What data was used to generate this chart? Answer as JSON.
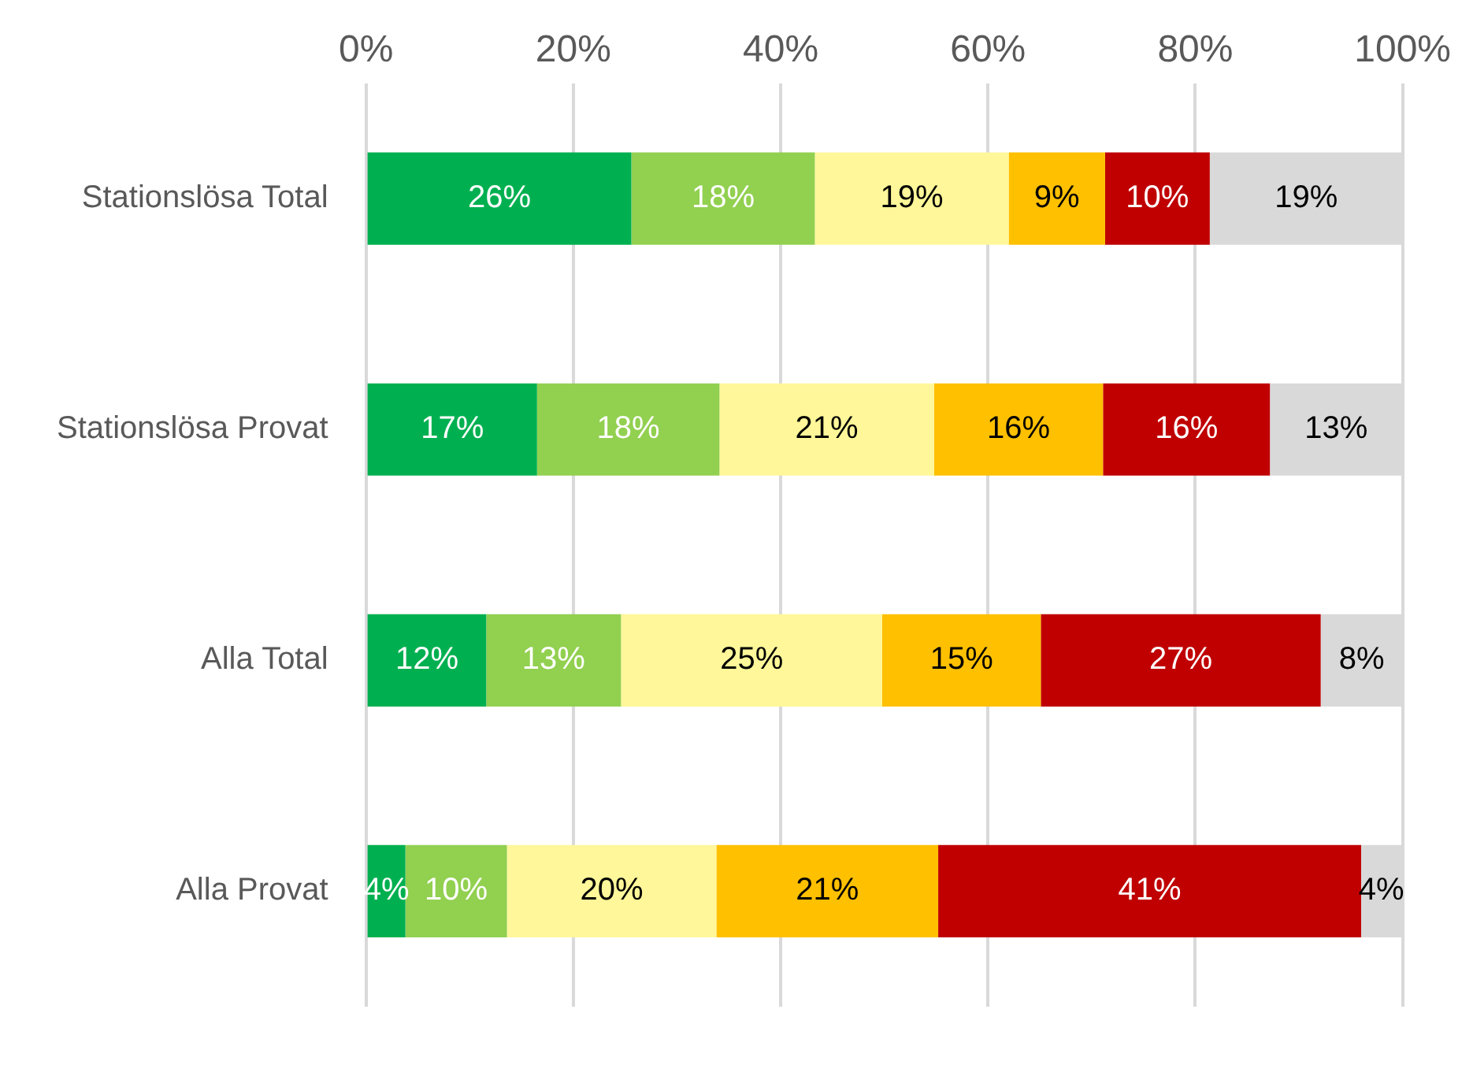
{
  "chart_data": {
    "type": "bar",
    "orientation": "horizontal",
    "stacked": true,
    "categories": [
      "Stationslösa Total",
      "Stationslösa Provat",
      "Alla Total",
      "Alla Provat"
    ],
    "series": [
      {
        "color": "#00b050",
        "values": [
          25.6,
          16.5,
          11.6,
          3.8
        ],
        "value_labels": [
          "26%",
          "17%",
          "12%",
          "4%"
        ]
      },
      {
        "color": "#92d050",
        "values": [
          17.7,
          17.6,
          13.0,
          9.8
        ],
        "value_labels": [
          "18%",
          "18%",
          "13%",
          "10%"
        ]
      },
      {
        "color": "#fff799",
        "values": [
          18.7,
          20.7,
          25.2,
          20.2
        ],
        "value_labels": [
          "19%",
          "21%",
          "25%",
          "20%"
        ]
      },
      {
        "color": "#ffc000",
        "values": [
          9.3,
          16.3,
          15.3,
          21.4
        ],
        "value_labels": [
          "9%",
          "16%",
          "15%",
          "21%"
        ]
      },
      {
        "color": "#c00000",
        "values": [
          10.1,
          16.1,
          27.0,
          40.8
        ],
        "value_labels": [
          "10%",
          "16%",
          "27%",
          "41%"
        ]
      },
      {
        "color": "#d9d9d9",
        "values": [
          18.6,
          12.8,
          7.9,
          3.9
        ],
        "value_labels": [
          "19%",
          "13%",
          "8%",
          "4%"
        ]
      }
    ],
    "xlim": [
      0,
      100
    ],
    "xticks": [
      {
        "value": 0,
        "label": "0%"
      },
      {
        "value": 20,
        "label": "20%"
      },
      {
        "value": 40,
        "label": "40%"
      },
      {
        "value": 60,
        "label": "60%"
      },
      {
        "value": 80,
        "label": "80%"
      },
      {
        "value": 100,
        "label": "100%"
      }
    ],
    "grid": "x",
    "legend": false
  }
}
